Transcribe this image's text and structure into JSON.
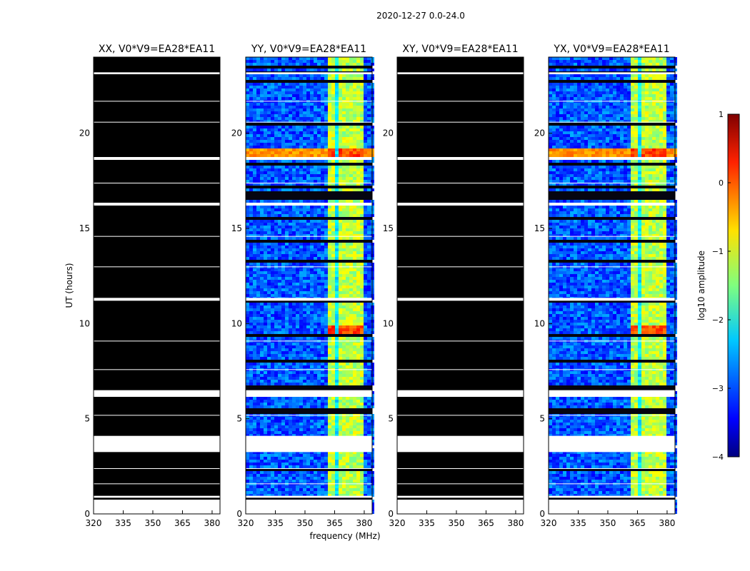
{
  "figure_title": "2020-12-27 0.0-24.0",
  "chart_data": {
    "type": "heatmap",
    "title": "2020-12-27 0.0-24.0",
    "xlabel": "frequency (MHz)",
    "ylabel": "UT (hours)",
    "xlim": [
      320,
      384
    ],
    "ylim": [
      0,
      24
    ],
    "xticks": [
      320,
      335,
      350,
      365,
      380
    ],
    "yticks": [
      0,
      5,
      10,
      15,
      20
    ],
    "panels": [
      {
        "title": "XX, V0*V9=EA28*EA11",
        "pol": "XX",
        "flagged_all": true
      },
      {
        "title": "YY, V0*V9=EA28*EA11",
        "pol": "YY",
        "flagged_all": false
      },
      {
        "title": "XY, V0*V9=EA28*EA11",
        "pol": "XY",
        "flagged_all": true
      },
      {
        "title": "YX, V0*V9=EA28*EA11",
        "pol": "YX",
        "flagged_all": false
      }
    ],
    "flagged_time_ranges_hours": [
      [
        0.0,
        0.75
      ],
      [
        0.85,
        0.95
      ],
      [
        3.25,
        4.1
      ],
      [
        6.15,
        6.5
      ],
      [
        11.2,
        11.35
      ],
      [
        16.2,
        16.35
      ],
      [
        18.6,
        18.75
      ],
      [
        23.1,
        23.2
      ]
    ],
    "bright_band_mhz": [
      361,
      380
    ],
    "bright_subbands_mhz": [
      [
        361.5,
        365.5
      ],
      [
        366.5,
        370
      ],
      [
        371,
        375
      ],
      [
        376,
        380
      ]
    ],
    "hot_time_ranges_hours": [
      [
        9.3,
        9.9
      ],
      [
        18.7,
        19.2
      ]
    ],
    "colorbar": {
      "label": "log10 amplitude",
      "range": [
        -4,
        1
      ],
      "ticks": [
        "1",
        "0",
        "−1",
        "−2",
        "−3",
        "−4"
      ],
      "colormap": "jet"
    }
  }
}
